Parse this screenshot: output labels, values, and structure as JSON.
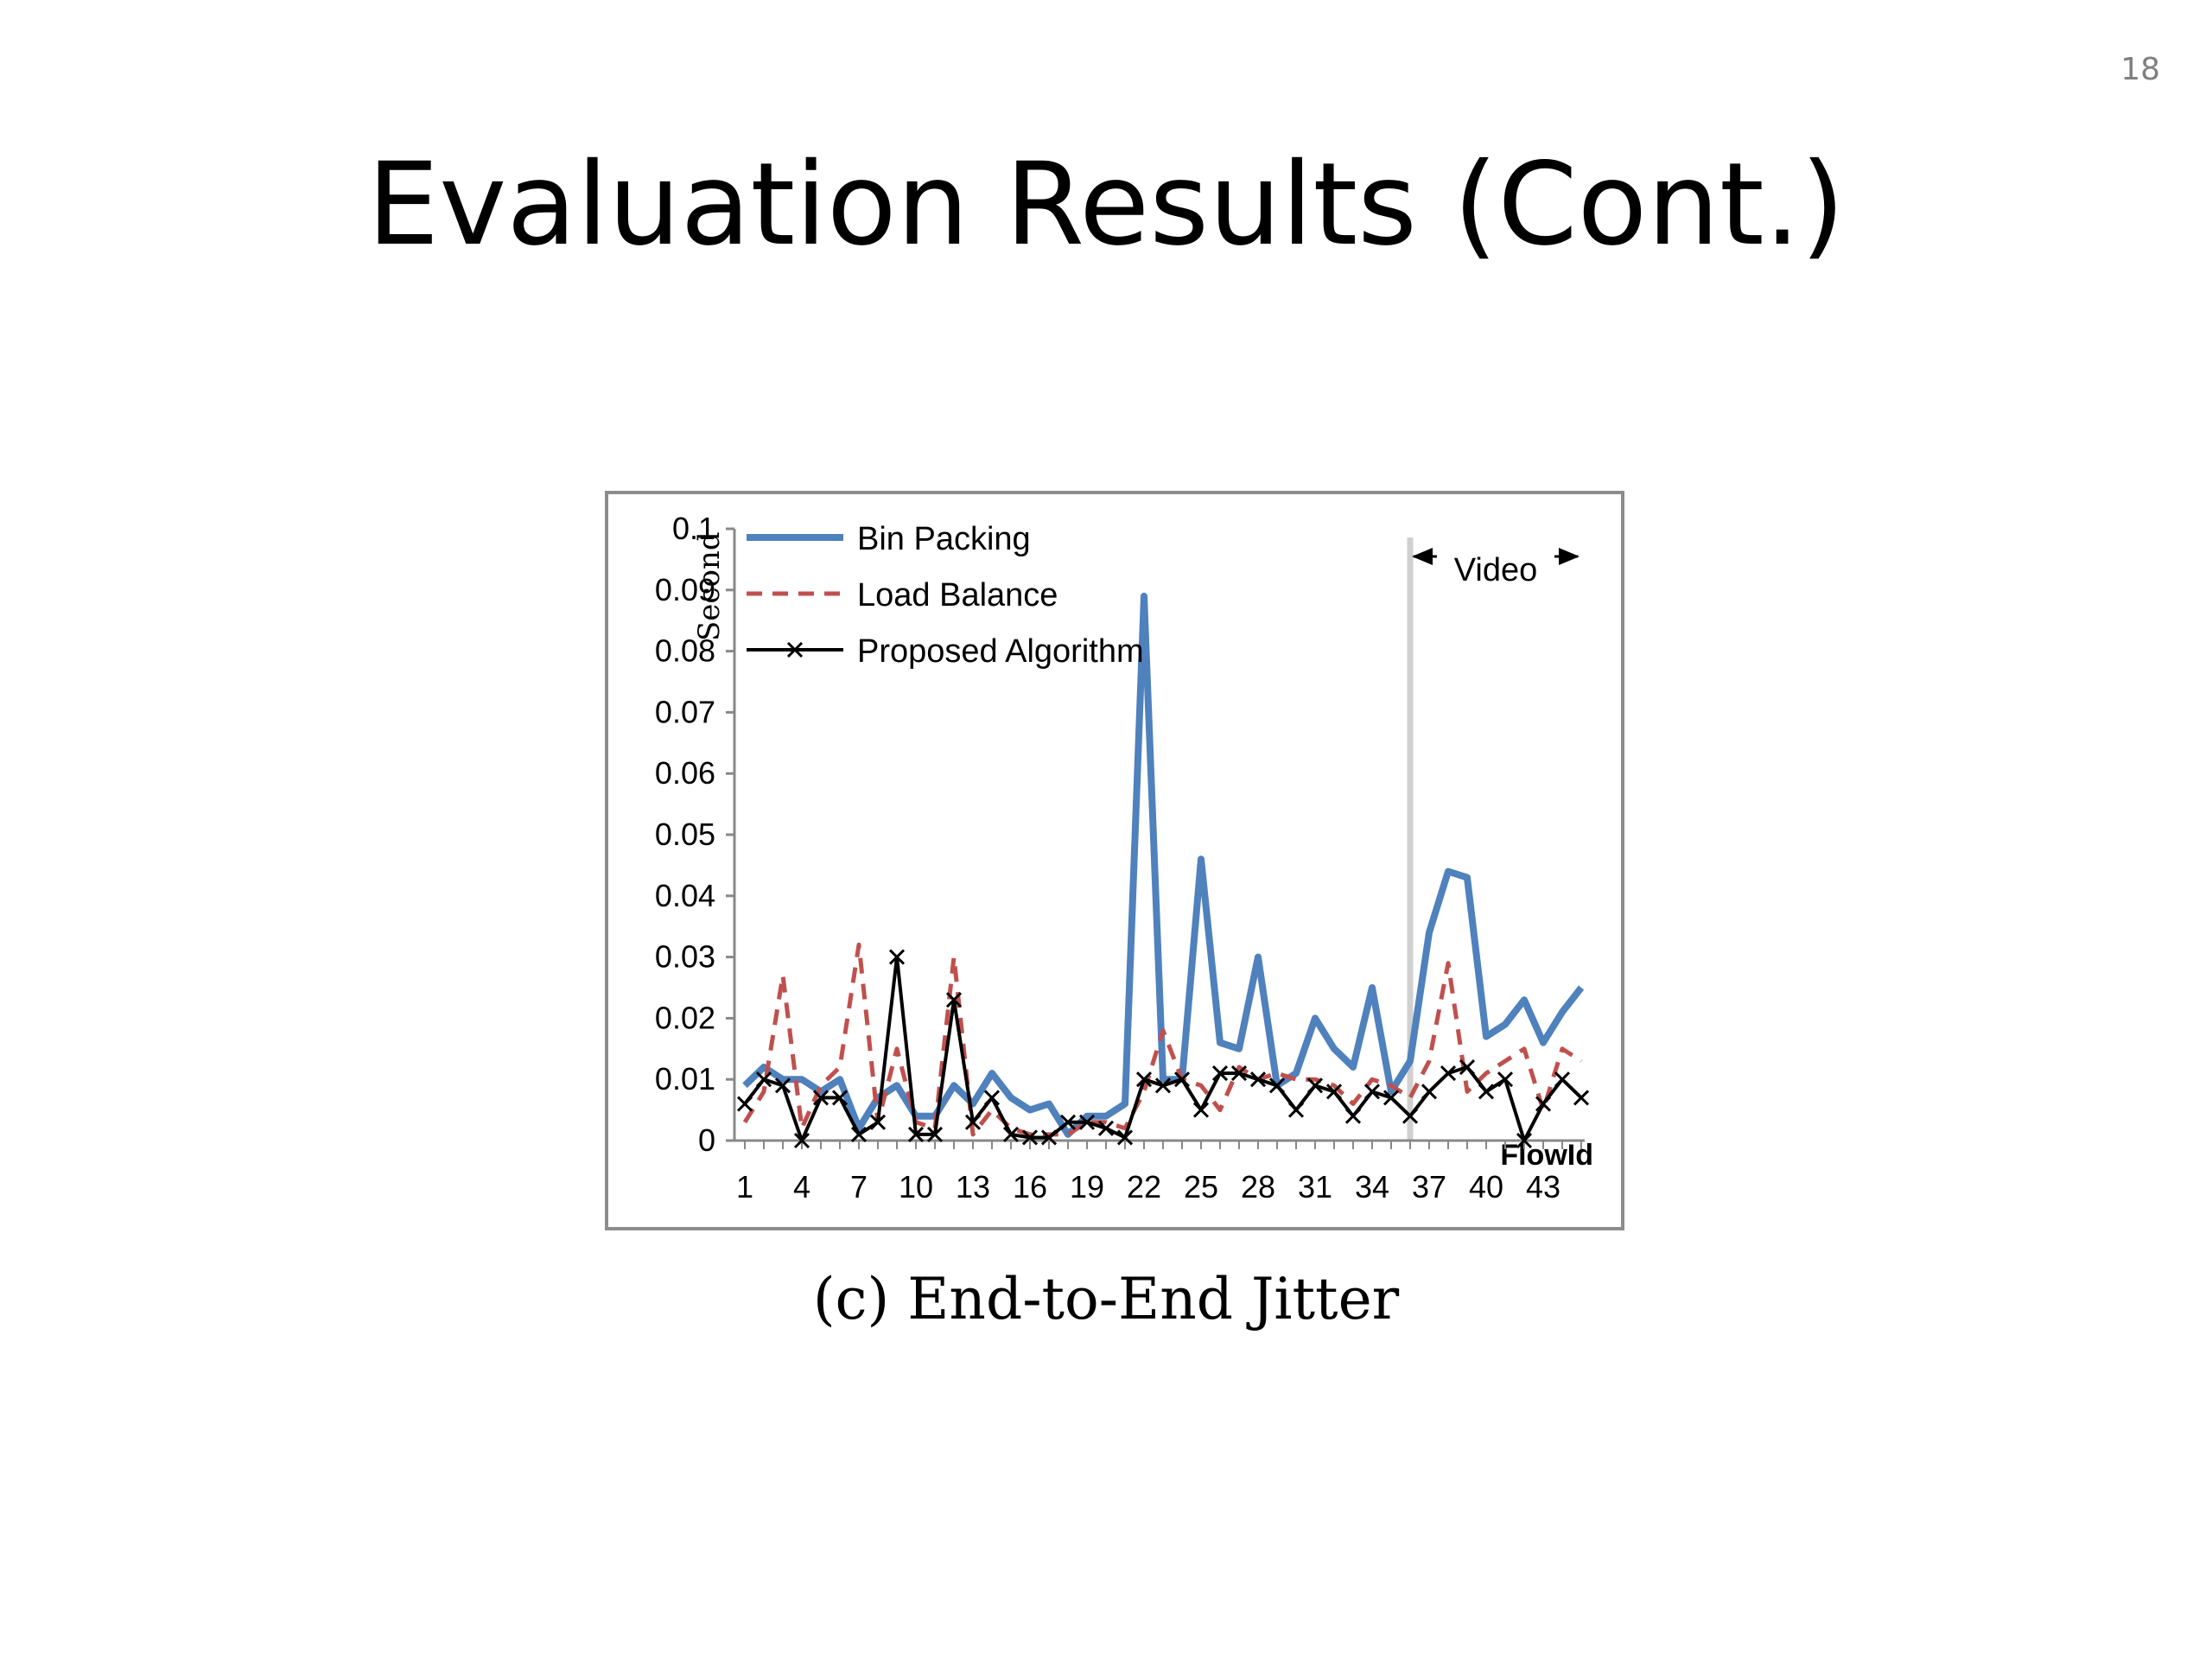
{
  "slide": {
    "number": "18",
    "title": "Evaluation Results (Cont.)",
    "caption": "(c) End-to-End Jitter"
  },
  "chart_data": {
    "type": "line",
    "title": "",
    "xlabel": "FlowId",
    "ylabel": "Second",
    "ylim": [
      0,
      0.1
    ],
    "xlim": [
      1,
      45
    ],
    "yticks": [
      "0",
      "0.01",
      "0.02",
      "0.03",
      "0.04",
      "0.05",
      "0.06",
      "0.07",
      "0.08",
      "0.09",
      "0.1"
    ],
    "xticks": [
      1,
      4,
      7,
      10,
      13,
      16,
      19,
      22,
      25,
      28,
      31,
      34,
      37,
      40,
      43
    ],
    "legend_position": "top-left",
    "annotation": {
      "label": "Video",
      "x_start": 36,
      "x_end": 45
    },
    "x": [
      1,
      2,
      3,
      4,
      5,
      6,
      7,
      8,
      9,
      10,
      11,
      12,
      13,
      14,
      15,
      16,
      17,
      18,
      19,
      20,
      21,
      22,
      23,
      24,
      25,
      26,
      27,
      28,
      29,
      30,
      31,
      32,
      33,
      34,
      35,
      36,
      37,
      38,
      39,
      40,
      41,
      42,
      43,
      44,
      45
    ],
    "series": [
      {
        "name": "Bin Packing",
        "color": "#4f81bd",
        "style": "solid",
        "values": [
          0.009,
          0.012,
          0.01,
          0.01,
          0.008,
          0.01,
          0.002,
          0.007,
          0.009,
          0.004,
          0.004,
          0.009,
          0.006,
          0.011,
          0.007,
          0.005,
          0.006,
          0.001,
          0.004,
          0.004,
          0.006,
          0.089,
          0.01,
          0.01,
          0.046,
          0.016,
          0.015,
          0.03,
          0.009,
          0.011,
          0.02,
          0.015,
          0.012,
          0.025,
          0.008,
          0.013,
          0.034,
          0.044,
          0.043,
          0.017,
          0.019,
          0.023,
          0.016,
          0.021,
          0.025
        ]
      },
      {
        "name": "Load Balance",
        "color": "#c0504d",
        "style": "dashed",
        "values": [
          0.003,
          0.008,
          0.027,
          0.002,
          0.009,
          0.012,
          0.032,
          0.003,
          0.015,
          0.003,
          0.002,
          0.03,
          0.001,
          0.005,
          0.002,
          0.001,
          0.001,
          0.001,
          0.003,
          0.003,
          0.002,
          0.008,
          0.018,
          0.01,
          0.009,
          0.005,
          0.012,
          0.01,
          0.011,
          0.01,
          0.01,
          0.009,
          0.006,
          0.01,
          0.009,
          0.007,
          0.013,
          0.029,
          0.008,
          0.011,
          0.013,
          0.015,
          0.005,
          0.015,
          0.013
        ]
      },
      {
        "name": "Proposed Algorithm",
        "color": "#000000",
        "style": "solid-x",
        "values": [
          0.006,
          0.01,
          0.009,
          0,
          0.007,
          0.007,
          0.001,
          0.003,
          0.03,
          0.001,
          0.001,
          0.023,
          0.003,
          0.007,
          0.001,
          0.0005,
          0.0005,
          0.003,
          0.003,
          0.002,
          0.0005,
          0.01,
          0.009,
          0.01,
          0.005,
          0.011,
          0.011,
          0.01,
          0.009,
          0.005,
          0.009,
          0.008,
          0.004,
          0.008,
          0.007,
          0.004,
          0.008,
          0.011,
          0.012,
          0.008,
          0.01,
          0,
          0.006,
          0.01,
          0.007
        ]
      }
    ]
  }
}
